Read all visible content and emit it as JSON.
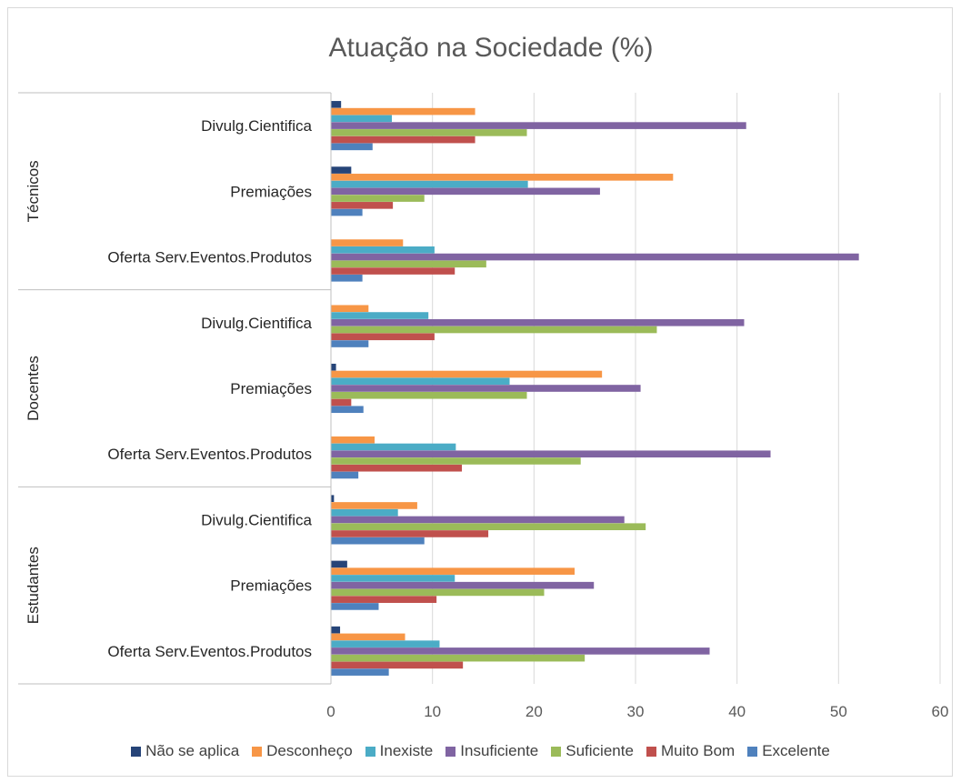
{
  "chart_data": {
    "type": "bar",
    "orientation": "horizontal",
    "title": "Atuação na Sociedade (%)",
    "xlim": [
      0,
      60
    ],
    "x_ticks": [
      "0",
      "10",
      "20",
      "30",
      "40",
      "50",
      "60"
    ],
    "grid": true,
    "legend_position": "bottom",
    "groups": [
      {
        "name": "Técnicos",
        "categories": [
          "Divulg.Cientifica",
          "Premiações",
          "Oferta Serv.Eventos.Produtos"
        ]
      },
      {
        "name": "Docentes",
        "categories": [
          "Divulg.Cientifica",
          "Premiações",
          "Oferta Serv.Eventos.Produtos"
        ]
      },
      {
        "name": "Estudantes",
        "categories": [
          "Divulg.Cientifica",
          "Premiações",
          "Oferta Serv.Eventos.Produtos"
        ]
      }
    ],
    "series": [
      {
        "name": "Não se aplica",
        "color": "#264478",
        "values": [
          1.0,
          2.0,
          0,
          0,
          0.5,
          0,
          0.3,
          1.6,
          0.9
        ]
      },
      {
        "name": "Desconheço",
        "color": "#F79646",
        "values": [
          14.2,
          33.7,
          7.1,
          3.7,
          26.7,
          4.3,
          8.5,
          24.0,
          7.3
        ]
      },
      {
        "name": "Inexiste",
        "color": "#4BACC6",
        "values": [
          6.0,
          19.4,
          10.2,
          9.6,
          17.6,
          12.3,
          6.6,
          12.2,
          10.7
        ]
      },
      {
        "name": "Insuficiente",
        "color": "#8064A2",
        "values": [
          40.9,
          26.5,
          52.0,
          40.7,
          30.5,
          43.3,
          28.9,
          25.9,
          37.3
        ]
      },
      {
        "name": "Suficiente",
        "color": "#9BBB59",
        "values": [
          19.3,
          9.2,
          15.3,
          32.1,
          19.3,
          24.6,
          31.0,
          21.0,
          25.0
        ]
      },
      {
        "name": "Muito Bom",
        "color": "#C0504D",
        "values": [
          14.2,
          6.1,
          12.2,
          10.2,
          2.0,
          12.9,
          15.5,
          10.4,
          13.0
        ]
      },
      {
        "name": "Excelente",
        "color": "#4F81BD",
        "values": [
          4.1,
          3.1,
          3.1,
          3.7,
          3.2,
          2.7,
          9.2,
          4.7,
          5.7
        ]
      }
    ]
  }
}
